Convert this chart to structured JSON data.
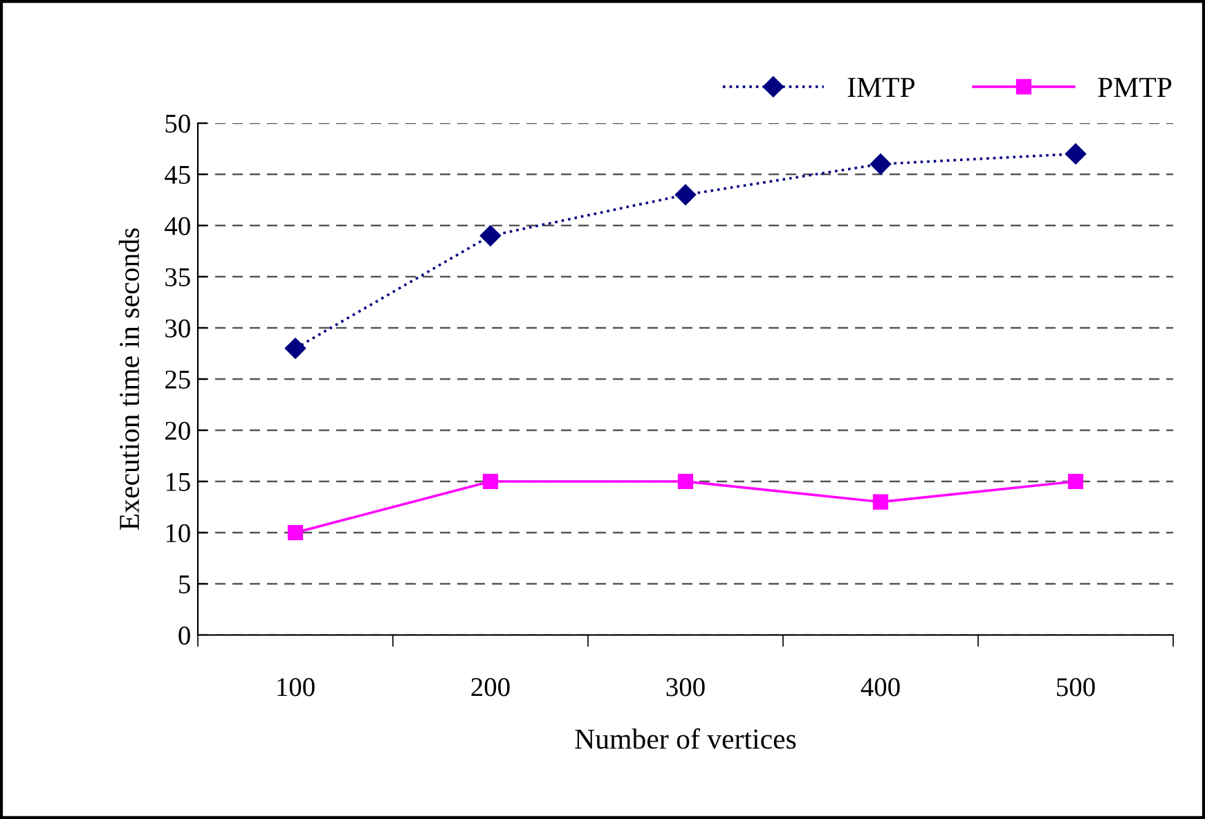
{
  "chart_data": {
    "type": "line",
    "xlabel": "Number of vertices",
    "ylabel": "Execution time in seconds",
    "categories": [
      "100",
      "200",
      "300",
      "400",
      "500"
    ],
    "series": [
      {
        "name": "IMTP",
        "color": "#000080",
        "values": [
          28,
          39,
          43,
          46,
          47
        ],
        "marker": "diamond",
        "line_style": "dotted"
      },
      {
        "name": "PMTP",
        "color": "#ff00ff",
        "values": [
          10,
          15,
          15,
          13,
          15
        ],
        "marker": "square",
        "line_style": "solid"
      }
    ],
    "ylim": [
      0,
      50
    ],
    "yticks": [
      0,
      5,
      10,
      15,
      20,
      25,
      30,
      35,
      40,
      45,
      50
    ],
    "grid": "y",
    "legend": "top right"
  }
}
